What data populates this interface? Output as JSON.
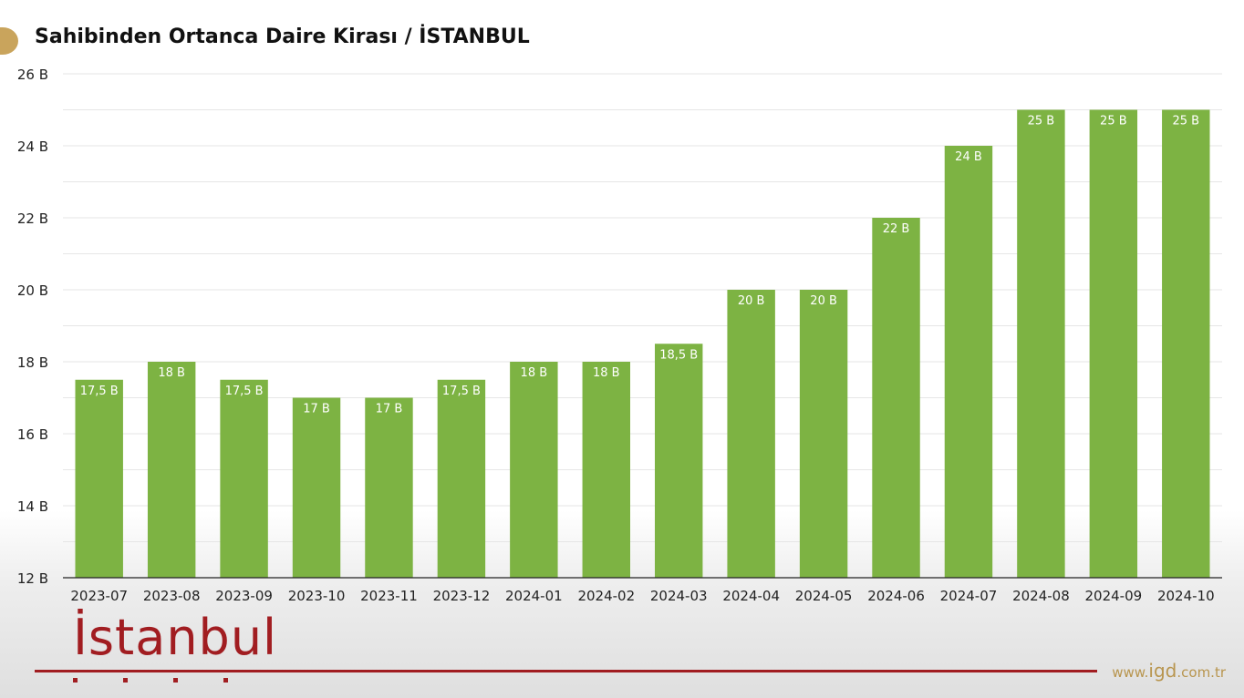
{
  "title": "Sahibinden Ortanca Daire Kirası / İSTANBUL",
  "logo": {
    "text": "İstanbul"
  },
  "website": {
    "prefix": "www.",
    "main": "igd",
    "suffix": ".com.tr"
  },
  "colors": {
    "bar": "#7db343",
    "bar_label": "#ffffff",
    "axis": "#222222",
    "grid": "#e6e6e6"
  },
  "chart_data": {
    "type": "bar",
    "title": "Sahibinden Ortanca Daire Kirası / İSTANBUL",
    "categories": [
      "2023-07",
      "2023-08",
      "2023-09",
      "2023-10",
      "2023-11",
      "2023-12",
      "2024-01",
      "2024-02",
      "2024-03",
      "2024-04",
      "2024-05",
      "2024-06",
      "2024-07",
      "2024-08",
      "2024-09",
      "2024-10"
    ],
    "values": [
      17.5,
      18,
      17.5,
      17,
      17,
      17.5,
      18,
      18,
      18.5,
      20,
      20,
      22,
      24,
      25,
      25,
      25
    ],
    "data_labels": [
      "17,5 B",
      "18 B",
      "17,5 B",
      "17 B",
      "17 B",
      "17,5 B",
      "18 B",
      "18 B",
      "18,5 B",
      "20 B",
      "20 B",
      "22 B",
      "24 B",
      "25 B",
      "25 B",
      "25 B"
    ],
    "y_ticks": [
      12,
      14,
      16,
      18,
      20,
      22,
      24,
      26
    ],
    "y_tick_labels": [
      "12 B",
      "14 B",
      "16 B",
      "18 B",
      "20 B",
      "22 B",
      "24 B",
      "26 B"
    ],
    "ylim": [
      12,
      26
    ],
    "xlabel": "",
    "ylabel": "",
    "grid": true
  }
}
